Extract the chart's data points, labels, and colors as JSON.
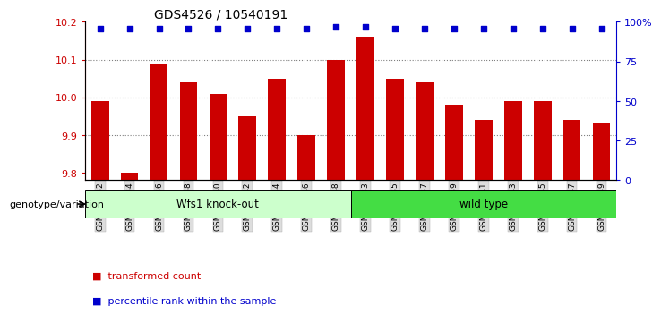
{
  "title": "GDS4526 / 10540191",
  "samples": [
    "GSM825432",
    "GSM825434",
    "GSM825436",
    "GSM825438",
    "GSM825440",
    "GSM825442",
    "GSM825444",
    "GSM825446",
    "GSM825448",
    "GSM825433",
    "GSM825435",
    "GSM825437",
    "GSM825439",
    "GSM825441",
    "GSM825443",
    "GSM825445",
    "GSM825447",
    "GSM825449"
  ],
  "bar_values": [
    9.99,
    9.8,
    10.09,
    10.04,
    10.01,
    9.95,
    10.05,
    9.9,
    10.1,
    10.16,
    10.05,
    10.04,
    9.98,
    9.94,
    9.99,
    9.99,
    9.94,
    9.93
  ],
  "percentile_values": [
    96,
    96,
    96,
    96,
    96,
    96,
    96,
    96,
    97,
    97,
    96,
    96,
    96,
    96,
    96,
    96,
    96,
    96
  ],
  "ymin": 9.78,
  "ymax": 10.2,
  "ylim_right": [
    0,
    100
  ],
  "yticks_left": [
    9.8,
    9.9,
    10.0,
    10.1,
    10.2
  ],
  "yticks_right": [
    0,
    25,
    50,
    75,
    100
  ],
  "ytick_labels_right": [
    "0",
    "25",
    "50",
    "75",
    "100%"
  ],
  "bar_color": "#cc0000",
  "percentile_color": "#0000cc",
  "group1_label": "Wfs1 knock-out",
  "group2_label": "wild type",
  "group1_count": 9,
  "group2_count": 9,
  "group1_bg": "#ccffcc",
  "group2_bg": "#44dd44",
  "xlabel_genotype": "genotype/variation",
  "legend_bar": "transformed count",
  "legend_pct": "percentile rank within the sample",
  "bar_width": 0.6,
  "title_fontsize": 10,
  "tick_fontsize": 8,
  "label_fontsize": 8
}
